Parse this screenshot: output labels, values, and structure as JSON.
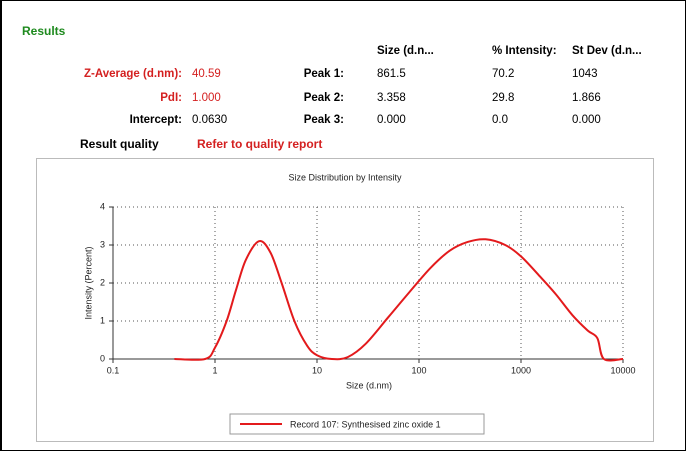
{
  "results": {
    "title": "Results",
    "headers": [
      "Size (d.n...",
      "% Intensity:",
      "St Dev (d.n..."
    ],
    "summary": [
      {
        "label": "Z-Average (d.nm):",
        "value": "40.59"
      },
      {
        "label": "PdI:",
        "value": "1.000"
      },
      {
        "label": "Intercept:",
        "value": "0.0630"
      }
    ],
    "peaks": [
      {
        "label": "Peak 1:",
        "size": "861.5",
        "intensity": "70.2",
        "stdev": "1043"
      },
      {
        "label": "Peak 2:",
        "size": "3.358",
        "intensity": "29.8",
        "stdev": "1.866"
      },
      {
        "label": "Peak 3:",
        "size": "0.000",
        "intensity": "0.0",
        "stdev": "0.000"
      }
    ],
    "quality": {
      "label": "Result quality",
      "value": "Refer to quality report"
    }
  },
  "chart_data": {
    "type": "line",
    "title": "Size Distribution by Intensity",
    "x_label": "Size (d.nm)",
    "y_label": "Intensity (Percent)",
    "x": [
      0.4,
      0.8,
      1,
      1.3,
      1.6,
      2,
      2.7,
      3.5,
      4.5,
      6,
      8,
      10,
      14,
      20,
      30,
      50,
      80,
      130,
      200,
      300,
      450,
      700,
      1000,
      1500,
      2200,
      3200,
      4500,
      5600,
      6500,
      10000
    ],
    "series": [
      {
        "name": "Record 107: Synthesised zinc oxide 1",
        "color": "#e31a1c",
        "values": [
          0,
          0,
          0.3,
          1.0,
          1.8,
          2.6,
          3.1,
          2.8,
          2.0,
          1.0,
          0.35,
          0.1,
          0,
          0.05,
          0.4,
          1.1,
          1.75,
          2.4,
          2.85,
          3.08,
          3.15,
          3.0,
          2.7,
          2.2,
          1.7,
          1.15,
          0.75,
          0.55,
          0,
          0
        ]
      }
    ],
    "xlim": [
      0.1,
      10000
    ],
    "xticks": [
      0.1,
      1,
      10,
      100,
      1000,
      10000
    ],
    "x_log": true,
    "ylim": [
      0,
      4
    ],
    "yticks": [
      0,
      1,
      2,
      3,
      4
    ],
    "grid": true
  }
}
